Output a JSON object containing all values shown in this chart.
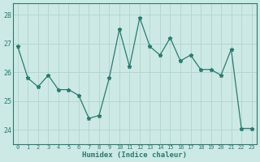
{
  "title": "",
  "xlabel": "Humidex (Indice chaleur)",
  "ylabel": "",
  "x": [
    0,
    1,
    2,
    3,
    4,
    5,
    6,
    7,
    8,
    9,
    10,
    11,
    12,
    13,
    14,
    15,
    16,
    17,
    18,
    19,
    20,
    21,
    22,
    23
  ],
  "y": [
    26.9,
    25.8,
    25.5,
    25.9,
    25.4,
    25.4,
    25.2,
    24.4,
    24.5,
    25.8,
    27.5,
    26.2,
    27.9,
    26.9,
    26.6,
    27.2,
    26.4,
    26.6,
    26.1,
    26.1,
    25.9,
    26.8,
    24.05,
    24.05
  ],
  "line_color": "#2a7b6f",
  "marker": "*",
  "bg_color": "#cce9e5",
  "grid_color": "#b0d4cf",
  "tick_color": "#2a7b6f",
  "label_color": "#2a7b6f",
  "ylim": [
    23.5,
    28.4
  ],
  "yticks": [
    24,
    25,
    26,
    27,
    28
  ],
  "figsize": [
    3.2,
    2.0
  ],
  "dpi": 100
}
